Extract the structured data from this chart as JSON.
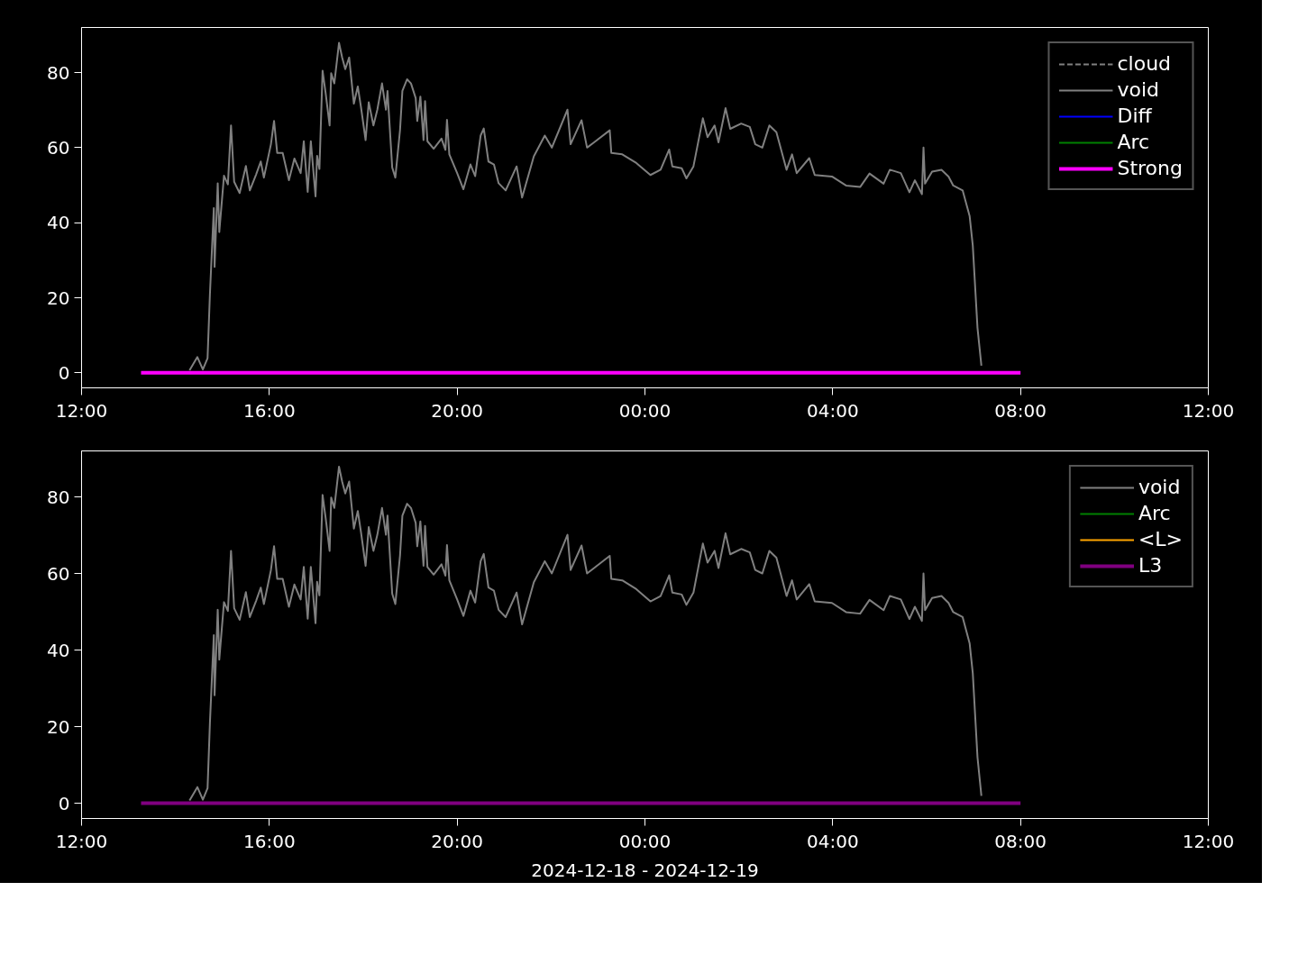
{
  "chart_data": [
    {
      "type": "line",
      "xlim": [
        "2024-12-18T12:00",
        "2024-12-19T12:00"
      ],
      "ylim": [
        -4,
        92
      ],
      "xticks": [
        {
          "value": "2024-12-18T12:00",
          "label": "12:00"
        },
        {
          "value": "2024-12-18T16:00",
          "label": "16:00"
        },
        {
          "value": "2024-12-18T20:00",
          "label": "20:00"
        },
        {
          "value": "2024-12-19T00:00",
          "label": "00:00"
        },
        {
          "value": "2024-12-19T04:00",
          "label": "04:00"
        },
        {
          "value": "2024-12-19T08:00",
          "label": "08:00"
        },
        {
          "value": "2024-12-19T12:00",
          "label": "12:00"
        }
      ],
      "yticks": [
        0,
        20,
        40,
        60,
        80
      ],
      "grid": false,
      "legend": "top right",
      "line_style": "solid",
      "series": [
        {
          "name": "cloud",
          "color": "#808080",
          "line_style": "dashed"
        },
        {
          "name": "void",
          "color": "#808080",
          "x": [
            "2024-12-18T14:18",
            "2024-12-18T14:28",
            "2024-12-18T14:35",
            "2024-12-18T14:41",
            "2024-12-18T14:44",
            "2024-12-18T14:49",
            "2024-12-18T14:50",
            "2024-12-18T14:54",
            "2024-12-18T14:56",
            "2024-12-18T15:02",
            "2024-12-18T15:07",
            "2024-12-18T15:11",
            "2024-12-18T15:15",
            "2024-12-18T15:22",
            "2024-12-18T15:30",
            "2024-12-18T15:35",
            "2024-12-18T15:43",
            "2024-12-18T15:49",
            "2024-12-18T15:53",
            "2024-12-18T16:02",
            "2024-12-18T16:06",
            "2024-12-18T16:10",
            "2024-12-18T16:17",
            "2024-12-18T16:25",
            "2024-12-18T16:32",
            "2024-12-18T16:40",
            "2024-12-18T16:44",
            "2024-12-18T16:49",
            "2024-12-18T16:53",
            "2024-12-18T16:59",
            "2024-12-18T17:01",
            "2024-12-18T17:04",
            "2024-12-18T17:08",
            "2024-12-18T17:12",
            "2024-12-18T17:17",
            "2024-12-18T17:19",
            "2024-12-18T17:23",
            "2024-12-18T17:29",
            "2024-12-18T17:33",
            "2024-12-18T17:37",
            "2024-12-18T17:42",
            "2024-12-18T17:48",
            "2024-12-18T17:53",
            "2024-12-18T17:57",
            "2024-12-18T18:03",
            "2024-12-18T18:07",
            "2024-12-18T18:13",
            "2024-12-18T18:18",
            "2024-12-18T18:24",
            "2024-12-18T18:29",
            "2024-12-18T18:31",
            "2024-12-18T18:37",
            "2024-12-18T18:41",
            "2024-12-18T18:47",
            "2024-12-18T18:50",
            "2024-12-18T18:56",
            "2024-12-18T19:01",
            "2024-12-18T19:07",
            "2024-12-18T19:09",
            "2024-12-18T19:13",
            "2024-12-18T19:17",
            "2024-12-18T19:19",
            "2024-12-18T19:22",
            "2024-12-18T19:30",
            "2024-12-18T19:40",
            "2024-12-18T19:45",
            "2024-12-18T19:47",
            "2024-12-18T19:50",
            "2024-12-18T20:00",
            "2024-12-18T20:08",
            "2024-12-18T20:17",
            "2024-12-18T20:23",
            "2024-12-18T20:30",
            "2024-12-18T20:34",
            "2024-12-18T20:40",
            "2024-12-18T20:47",
            "2024-12-18T20:53",
            "2024-12-18T21:02",
            "2024-12-18T21:16",
            "2024-12-18T21:23",
            "2024-12-18T21:38",
            "2024-12-18T21:52",
            "2024-12-18T22:01",
            "2024-12-18T22:21",
            "2024-12-18T22:25",
            "2024-12-18T22:39",
            "2024-12-18T22:46",
            "2024-12-18T22:55",
            "2024-12-18T23:15",
            "2024-12-18T23:17",
            "2024-12-18T23:31",
            "2024-12-18T23:49",
            "2024-12-19T00:07",
            "2024-12-19T00:20",
            "2024-12-19T00:31",
            "2024-12-19T00:35",
            "2024-12-19T00:47",
            "2024-12-19T00:53",
            "2024-12-19T01:02",
            "2024-12-19T01:14",
            "2024-12-19T01:20",
            "2024-12-19T01:29",
            "2024-12-19T01:34",
            "2024-12-19T01:43",
            "2024-12-19T01:49",
            "2024-12-19T02:03",
            "2024-12-19T02:14",
            "2024-12-19T02:21",
            "2024-12-19T02:30",
            "2024-12-19T02:39",
            "2024-12-19T02:48",
            "2024-12-19T03:01",
            "2024-12-19T03:08",
            "2024-12-19T03:14",
            "2024-12-19T03:30",
            "2024-12-19T03:37",
            "2024-12-19T03:59",
            "2024-12-19T04:17",
            "2024-12-19T04:35",
            "2024-12-19T04:47",
            "2024-12-19T05:05",
            "2024-12-19T05:13",
            "2024-12-19T05:27",
            "2024-12-19T05:38",
            "2024-12-19T05:45",
            "2024-12-19T05:54",
            "2024-12-19T05:56",
            "2024-12-19T05:58",
            "2024-12-19T06:07",
            "2024-12-19T06:19",
            "2024-12-19T06:28",
            "2024-12-19T06:34",
            "2024-12-19T06:46",
            "2024-12-19T06:55",
            "2024-12-19T06:59",
            "2024-12-19T07:05",
            "2024-12-19T07:10"
          ],
          "values": [
            0.7,
            4.2,
            0.9,
            3.9,
            20.8,
            43.9,
            28.2,
            50.5,
            37.5,
            52.5,
            50.2,
            65.9,
            50.9,
            47.9,
            55.1,
            48.6,
            52.8,
            56.3,
            52.0,
            60.9,
            67.1,
            58.6,
            58.6,
            51.3,
            57.1,
            53.2,
            61.7,
            48.2,
            61.7,
            47.0,
            57.8,
            54.3,
            80.5,
            74.4,
            65.9,
            79.8,
            77.1,
            87.9,
            84.0,
            80.9,
            84.0,
            71.7,
            76.3,
            70.9,
            62.0,
            72.1,
            65.9,
            70.1,
            77.1,
            70.1,
            75.1,
            54.7,
            52.0,
            64.7,
            75.1,
            78.2,
            77.1,
            73.2,
            67.1,
            73.6,
            62.0,
            72.4,
            61.7,
            59.7,
            62.4,
            59.4,
            67.4,
            58.2,
            53.2,
            48.9,
            55.5,
            52.4,
            63.2,
            65.1,
            56.3,
            55.5,
            50.5,
            48.6,
            55.0,
            46.7,
            57.7,
            63.2,
            60.0,
            70.1,
            60.9,
            67.3,
            60.0,
            61.4,
            64.6,
            58.6,
            58.2,
            55.9,
            52.7,
            54.1,
            59.5,
            55.0,
            54.5,
            51.8,
            55.0,
            67.8,
            62.8,
            65.9,
            61.4,
            70.5,
            65.0,
            66.4,
            65.5,
            60.9,
            60.0,
            65.9,
            64.1,
            54.1,
            58.2,
            53.2,
            57.2,
            52.7,
            52.3,
            49.9,
            49.5,
            53.1,
            50.4,
            54.1,
            53.2,
            48.1,
            51.3,
            47.6,
            60.0,
            50.4,
            53.6,
            54.1,
            52.3,
            49.9,
            48.6,
            41.7,
            33.9,
            12.0,
            1.9
          ]
        },
        {
          "name": "Diff",
          "color": "#0000ff"
        },
        {
          "name": "Arc",
          "color": "#008000"
        },
        {
          "name": "Strong",
          "color": "#ff00ff",
          "x": [
            "2024-12-18T13:16",
            "2024-12-19T08:00"
          ],
          "values": [
            0,
            0
          ]
        }
      ]
    },
    {
      "type": "line",
      "xlim": [
        "2024-12-18T12:00",
        "2024-12-19T12:00"
      ],
      "ylim": [
        -4,
        92
      ],
      "xlabel": "2024-12-18 - 2024-12-19",
      "xticks": [
        {
          "value": "2024-12-18T12:00",
          "label": "12:00"
        },
        {
          "value": "2024-12-18T16:00",
          "label": "16:00"
        },
        {
          "value": "2024-12-18T20:00",
          "label": "20:00"
        },
        {
          "value": "2024-12-19T00:00",
          "label": "00:00"
        },
        {
          "value": "2024-12-19T04:00",
          "label": "04:00"
        },
        {
          "value": "2024-12-19T08:00",
          "label": "08:00"
        },
        {
          "value": "2024-12-19T12:00",
          "label": "12:00"
        }
      ],
      "yticks": [
        0,
        20,
        40,
        60,
        80
      ],
      "grid": false,
      "legend": "top right",
      "line_style": "solid",
      "series": [
        {
          "name": "void",
          "color": "#808080",
          "x": [
            "2024-12-18T14:18",
            "2024-12-18T14:28",
            "2024-12-18T14:35",
            "2024-12-18T14:41",
            "2024-12-18T14:44",
            "2024-12-18T14:49",
            "2024-12-18T14:50",
            "2024-12-18T14:54",
            "2024-12-18T14:56",
            "2024-12-18T15:02",
            "2024-12-18T15:07",
            "2024-12-18T15:11",
            "2024-12-18T15:15",
            "2024-12-18T15:22",
            "2024-12-18T15:30",
            "2024-12-18T15:35",
            "2024-12-18T15:43",
            "2024-12-18T15:49",
            "2024-12-18T15:53",
            "2024-12-18T16:02",
            "2024-12-18T16:06",
            "2024-12-18T16:10",
            "2024-12-18T16:17",
            "2024-12-18T16:25",
            "2024-12-18T16:32",
            "2024-12-18T16:40",
            "2024-12-18T16:44",
            "2024-12-18T16:49",
            "2024-12-18T16:53",
            "2024-12-18T16:59",
            "2024-12-18T17:01",
            "2024-12-18T17:04",
            "2024-12-18T17:08",
            "2024-12-18T17:12",
            "2024-12-18T17:17",
            "2024-12-18T17:19",
            "2024-12-18T17:23",
            "2024-12-18T17:29",
            "2024-12-18T17:33",
            "2024-12-18T17:37",
            "2024-12-18T17:42",
            "2024-12-18T17:48",
            "2024-12-18T17:53",
            "2024-12-18T17:57",
            "2024-12-18T18:03",
            "2024-12-18T18:07",
            "2024-12-18T18:13",
            "2024-12-18T18:18",
            "2024-12-18T18:24",
            "2024-12-18T18:29",
            "2024-12-18T18:31",
            "2024-12-18T18:37",
            "2024-12-18T18:41",
            "2024-12-18T18:47",
            "2024-12-18T18:50",
            "2024-12-18T18:56",
            "2024-12-18T19:01",
            "2024-12-18T19:07",
            "2024-12-18T19:09",
            "2024-12-18T19:13",
            "2024-12-18T19:17",
            "2024-12-18T19:19",
            "2024-12-18T19:22",
            "2024-12-18T19:30",
            "2024-12-18T19:40",
            "2024-12-18T19:45",
            "2024-12-18T19:47",
            "2024-12-18T19:50",
            "2024-12-18T20:00",
            "2024-12-18T20:08",
            "2024-12-18T20:17",
            "2024-12-18T20:23",
            "2024-12-18T20:30",
            "2024-12-18T20:34",
            "2024-12-18T20:40",
            "2024-12-18T20:47",
            "2024-12-18T20:53",
            "2024-12-18T21:02",
            "2024-12-18T21:16",
            "2024-12-18T21:23",
            "2024-12-18T21:38",
            "2024-12-18T21:52",
            "2024-12-18T22:01",
            "2024-12-18T22:21",
            "2024-12-18T22:25",
            "2024-12-18T22:39",
            "2024-12-18T22:46",
            "2024-12-18T22:55",
            "2024-12-18T23:15",
            "2024-12-18T23:17",
            "2024-12-18T23:31",
            "2024-12-18T23:49",
            "2024-12-19T00:07",
            "2024-12-19T00:20",
            "2024-12-19T00:31",
            "2024-12-19T00:35",
            "2024-12-19T00:47",
            "2024-12-19T00:53",
            "2024-12-19T01:02",
            "2024-12-19T01:14",
            "2024-12-19T01:20",
            "2024-12-19T01:29",
            "2024-12-19T01:34",
            "2024-12-19T01:43",
            "2024-12-19T01:49",
            "2024-12-19T02:03",
            "2024-12-19T02:14",
            "2024-12-19T02:21",
            "2024-12-19T02:30",
            "2024-12-19T02:39",
            "2024-12-19T02:48",
            "2024-12-19T03:01",
            "2024-12-19T03:08",
            "2024-12-19T03:14",
            "2024-12-19T03:30",
            "2024-12-19T03:37",
            "2024-12-19T03:59",
            "2024-12-19T04:17",
            "2024-12-19T04:35",
            "2024-12-19T04:47",
            "2024-12-19T05:05",
            "2024-12-19T05:13",
            "2024-12-19T05:27",
            "2024-12-19T05:38",
            "2024-12-19T05:45",
            "2024-12-19T05:54",
            "2024-12-19T05:56",
            "2024-12-19T05:58",
            "2024-12-19T06:07",
            "2024-12-19T06:19",
            "2024-12-19T06:28",
            "2024-12-19T06:34",
            "2024-12-19T06:46",
            "2024-12-19T06:55",
            "2024-12-19T06:59",
            "2024-12-19T07:05",
            "2024-12-19T07:10"
          ],
          "values": [
            0.7,
            4.2,
            0.9,
            3.9,
            20.8,
            43.9,
            28.2,
            50.5,
            37.5,
            52.5,
            50.2,
            65.9,
            50.9,
            47.9,
            55.1,
            48.6,
            52.8,
            56.3,
            52.0,
            60.9,
            67.1,
            58.6,
            58.6,
            51.3,
            57.1,
            53.2,
            61.7,
            48.2,
            61.7,
            47.0,
            57.8,
            54.3,
            80.5,
            74.4,
            65.9,
            79.8,
            77.1,
            87.9,
            84.0,
            80.9,
            84.0,
            71.7,
            76.3,
            70.9,
            62.0,
            72.1,
            65.9,
            70.1,
            77.1,
            70.1,
            75.1,
            54.7,
            52.0,
            64.7,
            75.1,
            78.2,
            77.1,
            73.2,
            67.1,
            73.6,
            62.0,
            72.4,
            61.7,
            59.7,
            62.4,
            59.4,
            67.4,
            58.2,
            53.2,
            48.9,
            55.5,
            52.4,
            63.2,
            65.1,
            56.3,
            55.5,
            50.5,
            48.6,
            55.0,
            46.7,
            57.7,
            63.2,
            60.0,
            70.1,
            60.9,
            67.3,
            60.0,
            61.4,
            64.6,
            58.6,
            58.2,
            55.9,
            52.7,
            54.1,
            59.5,
            55.0,
            54.5,
            51.8,
            55.0,
            67.8,
            62.8,
            65.9,
            61.4,
            70.5,
            65.0,
            66.4,
            65.5,
            60.9,
            60.0,
            65.9,
            64.1,
            54.1,
            58.2,
            53.2,
            57.2,
            52.7,
            52.3,
            49.9,
            49.5,
            53.1,
            50.4,
            54.1,
            53.2,
            48.1,
            51.3,
            47.6,
            60.0,
            50.4,
            53.6,
            54.1,
            52.3,
            49.9,
            48.6,
            41.7,
            33.9,
            12.0,
            1.9
          ]
        },
        {
          "name": "Arc",
          "color": "#008000"
        },
        {
          "name": "<L>",
          "color": "#ffa500"
        },
        {
          "name": "L3",
          "color": "#800080",
          "x": [
            "2024-12-18T13:16",
            "2024-12-19T08:00"
          ],
          "values": [
            0,
            0
          ]
        }
      ]
    }
  ]
}
